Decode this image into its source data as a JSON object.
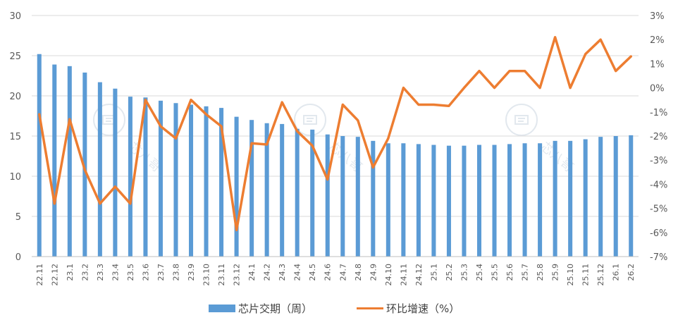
{
  "chart_data": {
    "type": "bar",
    "categories": [
      "22.11",
      "22.12",
      "23.1",
      "23.2",
      "23.3",
      "23.4",
      "23.5",
      "23.6",
      "23.7",
      "23.8",
      "23.9",
      "23.10",
      "23.11",
      "23.12",
      "24.1",
      "24.2",
      "24.3",
      "24.4",
      "24.5",
      "24.6",
      "24.7",
      "24.8",
      "24.9",
      "24.10",
      "24.11",
      "24.12",
      "25.1",
      "25.2",
      "25.3",
      "25.4",
      "25.5",
      "25.6",
      "25.7",
      "25.8",
      "25.9",
      "25.10",
      "25.11",
      "25.12",
      "26.1",
      "26.2"
    ],
    "series": [
      {
        "name": "芯片交期（周）",
        "type": "bar",
        "axis": "left",
        "color": "#5B9BD5",
        "values": [
          25.2,
          23.9,
          23.7,
          22.9,
          21.7,
          20.9,
          19.9,
          19.8,
          19.4,
          19.1,
          18.9,
          18.7,
          18.5,
          17.4,
          17.0,
          16.6,
          16.5,
          15.9,
          15.8,
          15.2,
          15.0,
          14.9,
          14.4,
          14.1,
          14.1,
          14.0,
          13.9,
          13.8,
          13.8,
          13.9,
          13.9,
          14.0,
          14.1,
          14.1,
          14.4,
          14.4,
          14.6,
          14.9,
          15.0,
          15.1
        ]
      },
      {
        "name": "环比增速（%）",
        "type": "line",
        "axis": "right",
        "color": "#ED7D31",
        "values": [
          -1.1,
          -4.8,
          -1.3,
          -3.4,
          -4.8,
          -4.1,
          -4.8,
          -0.5,
          -1.6,
          -2.1,
          -0.5,
          -1.1,
          -1.6,
          -5.9,
          -2.3,
          -2.35,
          -0.6,
          -1.8,
          -2.4,
          -3.8,
          -0.7,
          -1.35,
          -3.3,
          -2.1,
          0.0,
          -0.7,
          -0.7,
          -0.75,
          0.0,
          0.7,
          0.0,
          0.7,
          0.7,
          0.0,
          2.1,
          0.0,
          1.4,
          2.0,
          0.7,
          1.3
        ]
      }
    ],
    "y_left": {
      "ticks": [
        "0",
        "5",
        "10",
        "15",
        "20",
        "25",
        "30"
      ],
      "ylim": [
        0,
        30
      ]
    },
    "y_right": {
      "ticks": [
        "-7%",
        "-6%",
        "-5%",
        "-4%",
        "-3%",
        "-2%",
        "-1%",
        "0%",
        "1%",
        "2%",
        "3%"
      ],
      "ylim": [
        -7,
        3
      ]
    },
    "grid": true,
    "legend": {
      "position": "bottom",
      "labels": [
        "芯片交期（周）",
        "环比增速（%）"
      ]
    }
  },
  "watermark": {
    "text": "芯八哥",
    "icon": "chip-logo-icon"
  }
}
